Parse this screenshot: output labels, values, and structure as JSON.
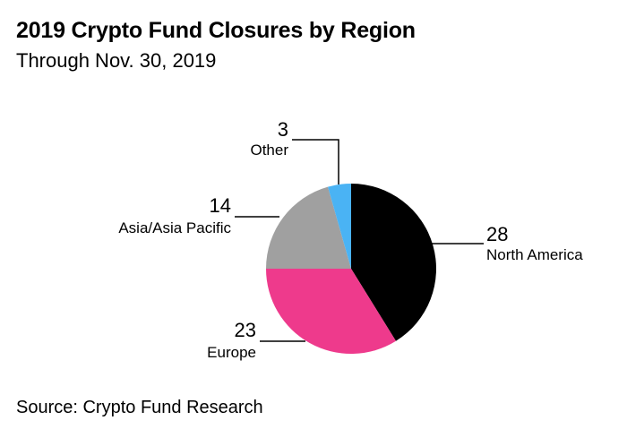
{
  "chart_data": {
    "type": "pie",
    "title": "2019 Crypto Fund Closures by Region",
    "subtitle": "Through Nov. 30, 2019",
    "source": "Source: Crypto Fund Research",
    "categories": [
      "North America",
      "Europe",
      "Asia/Asia Pacific",
      "Other"
    ],
    "values": [
      28,
      23,
      14,
      3
    ],
    "colors": [
      "#000000",
      "#ee3a8c",
      "#a0a0a0",
      "#4ab3f4"
    ],
    "legend": "none"
  }
}
